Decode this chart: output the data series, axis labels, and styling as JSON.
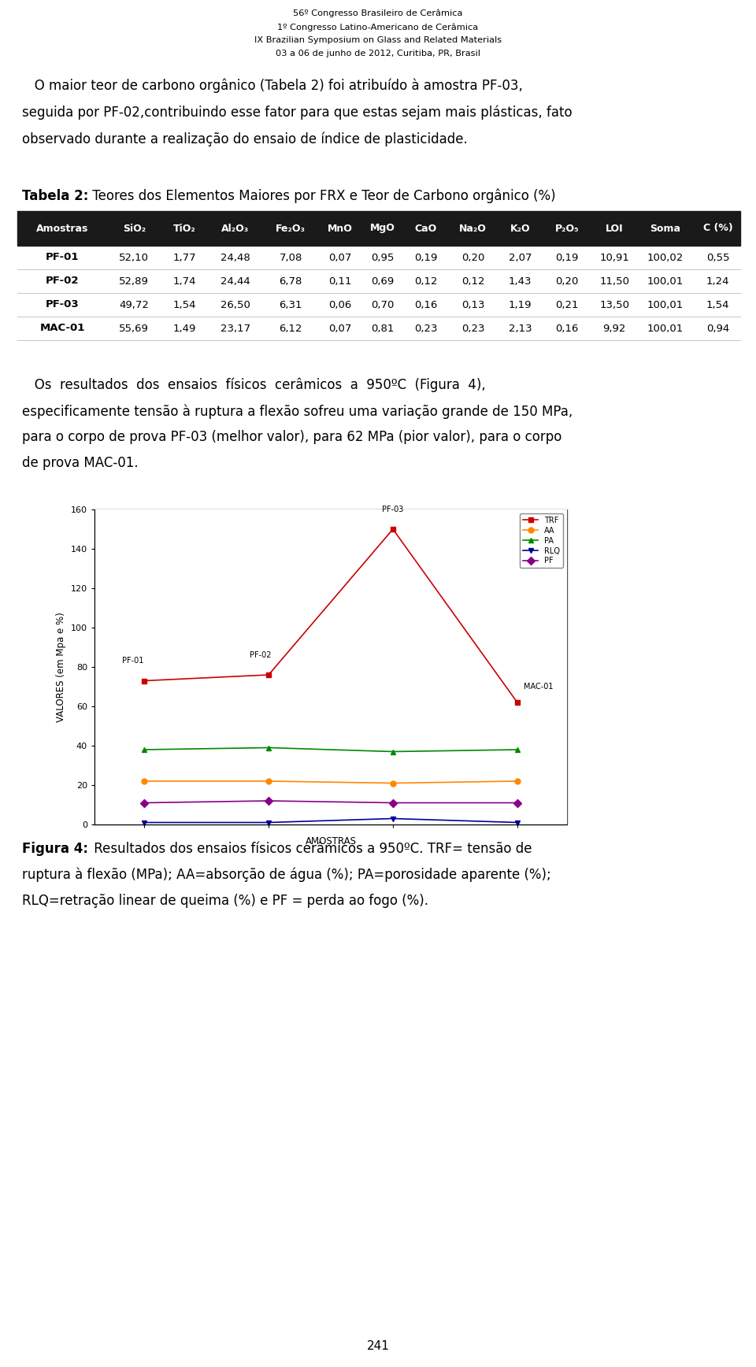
{
  "header_lines": [
    "56º Congresso Brasileiro de Cerâmica",
    "1º Congresso Latino-Americano de Cerâmica",
    "IX Brazilian Symposium on Glass and Related Materials",
    "03 a 06 de junho de 2012, Curitiba, PR, Brasil"
  ],
  "p1_lines": [
    "   O maior teor de carbono orgânico (Tabela 2) foi atribuído à amostra PF-03,",
    "seguida por PF-02,contribuindo esse fator para que estas sejam mais plásticas, fato",
    "observado durante a realização do ensaio de índice de plasticidade."
  ],
  "table_title_bold": "Tabela 2:",
  "table_title_rest": " Teores dos Elementos Maiores por FRX e Teor de Carbono orgânico (%)",
  "table_header": [
    "Amostras",
    "SiO₂",
    "TiO₂",
    "Al₂O₃",
    "Fe₂O₃",
    "MnO",
    "MgO",
    "CaO",
    "Na₂O",
    "K₂O",
    "P₂O₅",
    "LOI",
    "Soma",
    "C (%)"
  ],
  "table_rows": [
    [
      "PF-01",
      "52,10",
      "1,77",
      "24,48",
      "7,08",
      "0,07",
      "0,95",
      "0,19",
      "0,20",
      "2,07",
      "0,19",
      "10,91",
      "100,02",
      "0,55"
    ],
    [
      "PF-02",
      "52,89",
      "1,74",
      "24,44",
      "6,78",
      "0,11",
      "0,69",
      "0,12",
      "0,12",
      "1,43",
      "0,20",
      "11,50",
      "100,01",
      "1,24"
    ],
    [
      "PF-03",
      "49,72",
      "1,54",
      "26,50",
      "6,31",
      "0,06",
      "0,70",
      "0,16",
      "0,13",
      "1,19",
      "0,21",
      "13,50",
      "100,01",
      "1,54"
    ],
    [
      "MAC-01",
      "55,69",
      "1,49",
      "23,17",
      "6,12",
      "0,07",
      "0,81",
      "0,23",
      "0,23",
      "2,13",
      "0,16",
      "9,92",
      "100,01",
      "0,94"
    ]
  ],
  "p2_lines": [
    "   Os  resultados  dos  ensaios  físicos  cerâmicos  a  950ºC  (Figura  4),",
    "especificamente tensão à ruptura a flexão sofreu uma variação grande de 150 MPa,",
    "para o corpo de prova PF-03 (melhor valor), para 62 MPa (pior valor), para o corpo",
    "de prova MAC-01."
  ],
  "chart_xlabel": "AMOSTRAS",
  "chart_ylabel": "VALORES (em Mpa e %)",
  "chart_samples": [
    "PF-01",
    "PF-02",
    "PF-03",
    "MAC-01"
  ],
  "chart_series": {
    "TRF": {
      "color": "#cc0000",
      "marker": "s",
      "values": [
        73,
        76,
        150,
        62
      ]
    },
    "AA": {
      "color": "#ff8800",
      "marker": "o",
      "values": [
        22,
        22,
        21,
        22
      ]
    },
    "PA": {
      "color": "#008800",
      "marker": "^",
      "values": [
        38,
        39,
        37,
        38
      ]
    },
    "RLQ": {
      "color": "#000099",
      "marker": "v",
      "values": [
        1,
        1,
        3,
        1
      ]
    },
    "PF": {
      "color": "#880088",
      "marker": "D",
      "values": [
        11,
        12,
        11,
        11
      ]
    }
  },
  "chart_ylim": [
    0,
    160
  ],
  "chart_yticks": [
    0,
    20,
    40,
    60,
    80,
    100,
    120,
    140,
    160
  ],
  "trf_point_labels": [
    "PF-01",
    "PF-02",
    "PF-03",
    "MAC-01"
  ],
  "figura_bold": "Figura 4:",
  "figura_lines": [
    " Resultados dos ensaios físicos cerâmicos a 950ºC. TRF= tensão de",
    "ruptura à flexão (MPa); AA=absorção de água (%); PA=porosidade aparente (%);",
    "RLQ=retração linear de queima (%) e PF = perda ao fogo (%)."
  ],
  "page_number": "241",
  "bg_color": "#ffffff",
  "table_header_bg": "#1a1a1a",
  "table_header_fg": "#ffffff"
}
